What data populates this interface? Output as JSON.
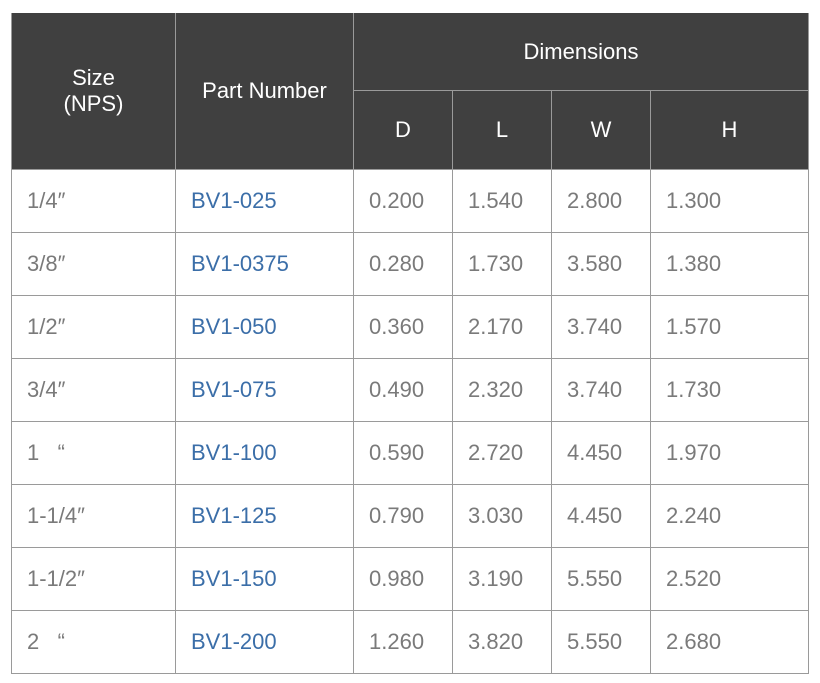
{
  "table": {
    "header": {
      "size": "Size\n(NPS)",
      "part_number": "Part Number",
      "dimensions": "Dimensions",
      "columns": [
        "D",
        "L",
        "W",
        "H"
      ]
    },
    "rows": [
      [
        "1/4″",
        "BV1-025",
        "0.200",
        "1.540",
        "2.800",
        "1.300"
      ],
      [
        "3/8″",
        "BV1-0375",
        "0.280",
        "1.730",
        "3.580",
        "1.380"
      ],
      [
        "1/2″",
        "BV1-050",
        "0.360",
        "2.170",
        "3.740",
        "1.570"
      ],
      [
        "3/4″",
        "BV1-075",
        "0.490",
        "2.320",
        "3.740",
        "1.730"
      ],
      [
        "1   “",
        "BV1-100",
        "0.590",
        "2.720",
        "4.450",
        "1.970"
      ],
      [
        "1-1/4″",
        "BV1-125",
        "0.790",
        "3.030",
        "4.450",
        "2.240"
      ],
      [
        "1-1/2″",
        "BV1-150",
        "0.980",
        "3.190",
        "5.550",
        "2.520"
      ],
      [
        "2   “",
        "BV1-200",
        "1.260",
        "3.820",
        "5.550",
        "2.680"
      ]
    ]
  }
}
